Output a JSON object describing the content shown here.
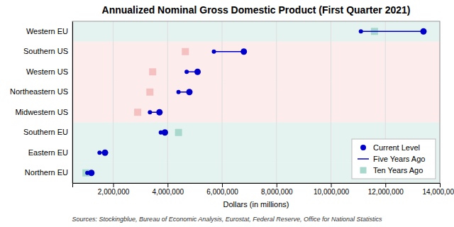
{
  "chart_data": {
    "type": "dumbbell",
    "orientation": "horizontal",
    "title": "Annualized Nominal Gross Domestic Product (First Quarter 2021)",
    "xlabel": "Dollars (in millions)",
    "source": "Sources: Stockingblue, Bureau of Economic Analysis, Eurostat, Federal Reserve, Office for National Statistics",
    "categories": [
      "Northern EU",
      "Eastern EU",
      "Southern EU",
      "Midwestern US",
      "Northeastern US",
      "Western US",
      "Southern US",
      "Western EU"
    ],
    "series": [
      {
        "name": "Current Level",
        "color": "#0000cc",
        "marker": "circle",
        "values": [
          1200000,
          1700000,
          3900000,
          3700000,
          4800000,
          5100000,
          6800000,
          13400000
        ]
      },
      {
        "name": "Five Years Ago",
        "color": "#0000cc",
        "marker": "circle",
        "line_style": "solid",
        "values": [
          1050000,
          1500000,
          3750000,
          3350000,
          4400000,
          4700000,
          5700000,
          11100000
        ]
      },
      {
        "name": "Ten Years Ago",
        "color": "#a8d8cc",
        "marker": "square",
        "colors": [
          "#a8d8cc",
          "#a8d8cc",
          "#a8d8cc",
          "#f5c0c0",
          "#f5c0c0",
          "#f5c0c0",
          "#f5c0c0",
          "#a8d8cc"
        ],
        "values": [
          1000000,
          null,
          4400000,
          2900000,
          3350000,
          3450000,
          4650000,
          11600000
        ]
      }
    ],
    "xlim": [
      500000,
      14000000
    ],
    "xticks": [
      {
        "value": 2000000,
        "label": "2,000,000"
      },
      {
        "value": 4000000,
        "label": "4,000,000"
      },
      {
        "value": 6000000,
        "label": "6,000,000"
      },
      {
        "value": 8000000,
        "label": "8,000,000"
      },
      {
        "value": 10000000,
        "label": "10,000,000"
      },
      {
        "value": 12000000,
        "label": "12,000,000"
      },
      {
        "value": 14000000,
        "label": "14,000,000"
      }
    ],
    "grid": true,
    "legend": "lower right"
  }
}
